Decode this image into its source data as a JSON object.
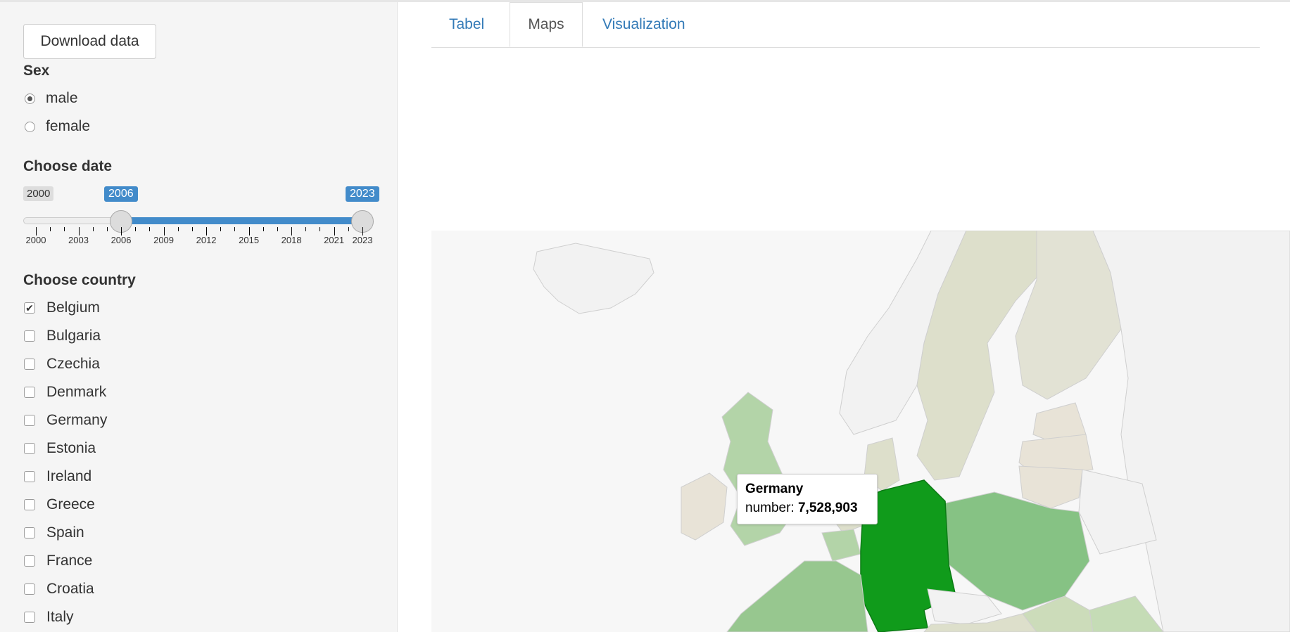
{
  "sidebar": {
    "download_label": "Download data",
    "sex": {
      "label": "Sex",
      "options": [
        {
          "label": "male",
          "selected": true
        },
        {
          "label": "female",
          "selected": false
        }
      ]
    },
    "date": {
      "label": "Choose date",
      "min_label": "2000",
      "from_label": "2006",
      "to_label": "2023",
      "min": 2000,
      "max": 2023,
      "from": 2006,
      "to": 2023,
      "ticks": [
        "2000",
        "2003",
        "2006",
        "2009",
        "2012",
        "2015",
        "2018",
        "2021",
        "2023"
      ]
    },
    "country": {
      "label": "Choose country",
      "items": [
        {
          "label": "Belgium",
          "checked": true
        },
        {
          "label": "Bulgaria",
          "checked": false
        },
        {
          "label": "Czechia",
          "checked": false
        },
        {
          "label": "Denmark",
          "checked": false
        },
        {
          "label": "Germany",
          "checked": false
        },
        {
          "label": "Estonia",
          "checked": false
        },
        {
          "label": "Ireland",
          "checked": false
        },
        {
          "label": "Greece",
          "checked": false
        },
        {
          "label": "Spain",
          "checked": false
        },
        {
          "label": "France",
          "checked": false
        },
        {
          "label": "Croatia",
          "checked": false
        },
        {
          "label": "Italy",
          "checked": false
        }
      ]
    }
  },
  "tabs": [
    {
      "label": "Tabel",
      "active": false
    },
    {
      "label": "Maps",
      "active": true
    },
    {
      "label": "Visualization",
      "active": false
    }
  ],
  "map": {
    "tooltip": {
      "country": "Germany",
      "metric_label": "number:",
      "value": "7,528,903"
    },
    "colors": {
      "highlight": "#109b1b",
      "strong": "#86c284",
      "medium": "#b3d4a8",
      "light": "#dddfcb",
      "beige": "#e8e3d7",
      "nodata": "#f2f2f2"
    }
  },
  "colors": {
    "accent": "#428bca",
    "link": "#337ab7"
  }
}
